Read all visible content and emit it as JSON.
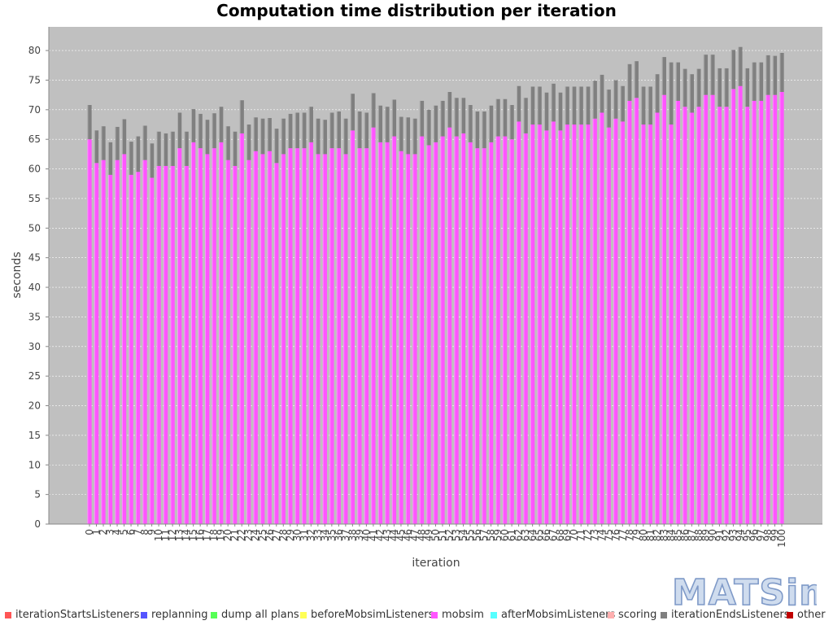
{
  "chart_data": {
    "type": "bar",
    "stacked": true,
    "title": "Computation time distribution per iteration",
    "xlabel": "iteration",
    "ylabel": "seconds",
    "ylim": [
      0,
      84
    ],
    "yticks": [
      0,
      5,
      10,
      15,
      20,
      25,
      30,
      35,
      40,
      45,
      50,
      55,
      60,
      65,
      70,
      75,
      80
    ],
    "grid": true,
    "legend_position": "bottom",
    "categories": [
      "0",
      "1",
      "2",
      "3",
      "4",
      "5",
      "6",
      "7",
      "8",
      "9",
      "10",
      "11",
      "12",
      "13",
      "14",
      "15",
      "16",
      "17",
      "18",
      "19",
      "20",
      "21",
      "22",
      "23",
      "24",
      "25",
      "26",
      "27",
      "28",
      "29",
      "30",
      "31",
      "32",
      "33",
      "34",
      "35",
      "36",
      "37",
      "38",
      "39",
      "40",
      "41",
      "42",
      "43",
      "44",
      "45",
      "46",
      "47",
      "48",
      "49",
      "50",
      "51",
      "52",
      "53",
      "54",
      "55",
      "56",
      "57",
      "58",
      "59",
      "60",
      "61",
      "62",
      "63",
      "64",
      "65",
      "66",
      "67",
      "68",
      "69",
      "70",
      "71",
      "72",
      "73",
      "74",
      "75",
      "76",
      "77",
      "78",
      "79",
      "80",
      "81",
      "82",
      "83",
      "84",
      "85",
      "86",
      "87",
      "88",
      "89",
      "90",
      "91",
      "92",
      "93",
      "94",
      "95",
      "96",
      "97",
      "98",
      "99",
      "100"
    ],
    "series": [
      {
        "name": "iterationStartsListeners",
        "color": "#ff5555",
        "values": [
          0,
          0,
          0,
          0,
          0,
          0,
          0,
          0,
          0,
          0,
          0,
          0,
          0,
          0,
          0,
          0,
          0,
          0,
          0,
          0,
          0,
          0,
          0,
          0,
          0,
          0,
          0,
          0,
          0,
          0,
          0,
          0,
          0,
          0,
          0,
          0,
          0,
          0,
          0,
          0,
          0,
          0,
          0,
          0,
          0,
          0,
          0,
          0,
          0,
          0,
          0,
          0,
          0,
          0,
          0,
          0,
          0,
          0,
          0,
          0,
          0,
          0,
          0,
          0,
          0,
          0,
          0,
          0,
          0,
          0,
          0,
          0,
          0,
          0,
          0,
          0,
          0,
          0,
          0,
          0,
          0,
          0,
          0,
          0,
          0,
          0,
          0,
          0,
          0,
          0,
          0,
          0,
          0,
          0,
          0,
          0,
          0,
          0,
          0,
          0,
          0
        ]
      },
      {
        "name": "replanning",
        "color": "#5555ff",
        "values": [
          0,
          0,
          0,
          0,
          0,
          0,
          0,
          0,
          0,
          0,
          0,
          0,
          0,
          0,
          0,
          0,
          0,
          0,
          0,
          0,
          0,
          0,
          0,
          0,
          0,
          0,
          0,
          0,
          0,
          0,
          0,
          0,
          0,
          0,
          0,
          0,
          0,
          0,
          0,
          0,
          0,
          0,
          0,
          0,
          0,
          0,
          0,
          0,
          0,
          0,
          0,
          0,
          0,
          0,
          0,
          0,
          0,
          0,
          0,
          0,
          0,
          0,
          0,
          0,
          0,
          0,
          0,
          0,
          0,
          0,
          0,
          0,
          0,
          0,
          0,
          0,
          0,
          0,
          0,
          0,
          0,
          0,
          0,
          0,
          0,
          0,
          0,
          0,
          0,
          0,
          0,
          0,
          0,
          0,
          0,
          0,
          0,
          0,
          0,
          0,
          0
        ]
      },
      {
        "name": "dump all plans",
        "color": "#55ff55",
        "values": [
          0,
          0,
          0,
          0,
          0,
          0,
          0,
          0,
          0,
          0,
          0,
          0,
          0,
          0,
          0,
          0,
          0,
          0,
          0,
          0,
          0,
          0,
          0,
          0,
          0,
          0,
          0,
          0,
          0,
          0,
          0,
          0,
          0,
          0,
          0,
          0,
          0,
          0,
          0,
          0,
          0,
          0,
          0,
          0,
          0,
          0,
          0,
          0,
          0,
          0,
          0,
          0,
          0,
          0,
          0,
          0,
          0,
          0,
          0,
          0,
          0,
          0,
          0,
          0,
          0,
          0,
          0,
          0,
          0,
          0,
          0,
          0,
          0,
          0,
          0,
          0,
          0,
          0,
          0,
          0,
          0,
          0,
          0,
          0,
          0,
          0,
          0,
          0,
          0,
          0,
          0,
          0,
          0,
          0,
          0,
          0,
          0,
          0,
          0,
          0,
          0
        ]
      },
      {
        "name": "beforeMobsimListeners",
        "color": "#ffff55",
        "values": [
          0,
          0,
          0,
          0,
          0,
          0,
          0,
          0,
          0,
          0,
          0,
          0,
          0,
          0,
          0,
          0,
          0,
          0,
          0,
          0,
          0,
          0,
          0,
          0,
          0,
          0,
          0,
          0,
          0,
          0,
          0,
          0,
          0,
          0,
          0,
          0,
          0,
          0,
          0,
          0,
          0,
          0,
          0,
          0,
          0,
          0,
          0,
          0,
          0,
          0,
          0,
          0,
          0,
          0,
          0,
          0,
          0,
          0,
          0,
          0,
          0,
          0,
          0,
          0,
          0,
          0,
          0,
          0,
          0,
          0,
          0,
          0,
          0,
          0,
          0,
          0,
          0,
          0,
          0,
          0,
          0,
          0,
          0,
          0,
          0,
          0,
          0,
          0,
          0,
          0,
          0,
          0,
          0,
          0,
          0,
          0,
          0,
          0,
          0,
          0,
          0
        ]
      },
      {
        "name": "mobsim",
        "color": "#ff55ff",
        "values": [
          65.0,
          61.0,
          61.5,
          59.0,
          61.5,
          62.5,
          59.0,
          59.5,
          61.5,
          58.5,
          60.5,
          60.5,
          60.5,
          63.5,
          60.5,
          64.5,
          63.5,
          62.5,
          63.5,
          64.5,
          61.5,
          60.5,
          66.0,
          61.5,
          63.0,
          62.5,
          63.0,
          61.0,
          62.5,
          63.5,
          63.5,
          63.5,
          64.5,
          62.5,
          62.5,
          63.5,
          63.5,
          62.5,
          66.5,
          63.5,
          63.5,
          67.0,
          64.5,
          64.5,
          65.5,
          63.0,
          62.5,
          62.5,
          65.5,
          64.0,
          64.5,
          65.5,
          67.0,
          65.5,
          66.0,
          64.5,
          63.5,
          63.5,
          64.5,
          65.5,
          65.5,
          65.0,
          68.0,
          66.0,
          67.5,
          67.5,
          66.5,
          68.0,
          66.5,
          67.5,
          67.5,
          67.5,
          67.5,
          68.5,
          69.5,
          67.0,
          68.5,
          68.0,
          71.5,
          72.0,
          67.5,
          67.5,
          69.5,
          72.5,
          67.5,
          71.5,
          70.5,
          69.5,
          70.5,
          72.5,
          72.5,
          70.5,
          70.5,
          73.5,
          74.0,
          70.5,
          71.5,
          71.5,
          72.5,
          72.5,
          73.0
        ]
      },
      {
        "name": "afterMobsimListeners",
        "color": "#55ffff",
        "values": [
          0,
          0,
          0,
          0,
          0,
          0,
          0,
          0,
          0,
          0,
          0,
          0,
          0,
          0,
          0,
          0,
          0,
          0,
          0,
          0,
          0,
          0,
          0,
          0,
          0,
          0,
          0,
          0,
          0,
          0,
          0,
          0,
          0,
          0,
          0,
          0,
          0,
          0,
          0,
          0,
          0,
          0,
          0,
          0,
          0,
          0,
          0,
          0,
          0,
          0,
          0,
          0,
          0,
          0,
          0,
          0,
          0,
          0,
          0,
          0,
          0,
          0,
          0,
          0,
          0,
          0,
          0,
          0,
          0,
          0,
          0,
          0,
          0,
          0,
          0,
          0,
          0,
          0,
          0,
          0,
          0,
          0,
          0,
          0,
          0,
          0,
          0,
          0,
          0,
          0,
          0,
          0,
          0,
          0,
          0,
          0,
          0,
          0,
          0,
          0,
          0
        ]
      },
      {
        "name": "scoring",
        "color": "#ffafaf",
        "values": [
          0,
          0,
          0,
          0,
          0,
          0,
          0,
          0,
          0,
          0,
          0,
          0,
          0,
          0,
          0,
          0,
          0,
          0,
          0,
          0,
          0,
          0,
          0,
          0,
          0,
          0,
          0,
          0,
          0,
          0,
          0,
          0,
          0,
          0,
          0,
          0,
          0,
          0,
          0,
          0,
          0,
          0,
          0,
          0,
          0,
          0,
          0,
          0,
          0,
          0,
          0,
          0,
          0,
          0,
          0,
          0,
          0,
          0,
          0,
          0,
          0,
          0,
          0,
          0,
          0,
          0,
          0,
          0,
          0,
          0,
          0,
          0,
          0,
          0,
          0,
          0,
          0,
          0,
          0,
          0,
          0,
          0,
          0,
          0,
          0,
          0,
          0,
          0,
          0,
          0,
          0,
          0,
          0,
          0,
          0,
          0,
          0,
          0,
          0,
          0,
          0
        ]
      },
      {
        "name": "iterationEndsListeners",
        "color": "#808080",
        "values": [
          5.8,
          5.5,
          5.7,
          5.5,
          5.6,
          5.9,
          5.6,
          6.0,
          5.8,
          5.8,
          5.8,
          5.5,
          5.8,
          6.0,
          5.8,
          5.6,
          5.8,
          5.8,
          5.9,
          6.0,
          5.7,
          5.8,
          5.6,
          6.0,
          5.7,
          6.0,
          5.6,
          5.8,
          6.0,
          5.8,
          6.0,
          6.0,
          6.0,
          6.0,
          5.8,
          6.0,
          6.2,
          6.0,
          6.2,
          6.2,
          6.0,
          5.8,
          6.2,
          6.0,
          6.2,
          5.8,
          6.2,
          6.0,
          6.0,
          6.0,
          6.2,
          6.0,
          6.0,
          6.5,
          6.0,
          6.3,
          6.2,
          6.2,
          6.2,
          6.3,
          6.3,
          5.8,
          6.0,
          6.0,
          6.4,
          6.4,
          6.4,
          6.4,
          6.4,
          6.4,
          6.4,
          6.4,
          6.4,
          6.4,
          6.4,
          6.4,
          6.5,
          6.0,
          6.2,
          6.2,
          6.4,
          6.4,
          6.5,
          6.4,
          10.5,
          6.5,
          6.4,
          6.5,
          6.4,
          6.8,
          6.8,
          6.5,
          6.5,
          6.6,
          6.6,
          6.5,
          6.5,
          6.5,
          6.7,
          6.6,
          6.6
        ]
      },
      {
        "name": "other",
        "color": "#c00000",
        "values": [
          0,
          0,
          0,
          0,
          0,
          0,
          0,
          0,
          0,
          0,
          0,
          0,
          0,
          0,
          0,
          0,
          0,
          0,
          0,
          0,
          0,
          0,
          0,
          0,
          0,
          0,
          0,
          0,
          0,
          0,
          0,
          0,
          0,
          0,
          0,
          0,
          0,
          0,
          0,
          0,
          0,
          0,
          0,
          0,
          0,
          0,
          0,
          0,
          0,
          0,
          0,
          0,
          0,
          0,
          0,
          0,
          0,
          0,
          0,
          0,
          0,
          0,
          0,
          0,
          0,
          0,
          0,
          0,
          0,
          0,
          0,
          0,
          0,
          0,
          0,
          0,
          0,
          0,
          0,
          0,
          0,
          0,
          0,
          0,
          0,
          0,
          0,
          0,
          0,
          0,
          0,
          0,
          0,
          0,
          0,
          0,
          0,
          0,
          0,
          0,
          0
        ]
      }
    ]
  },
  "colors": {
    "plot_background": "#c0c0c0",
    "gridline": "#ffffff"
  },
  "logo": {
    "text": "MATSim",
    "icon": "matsim-logo"
  }
}
